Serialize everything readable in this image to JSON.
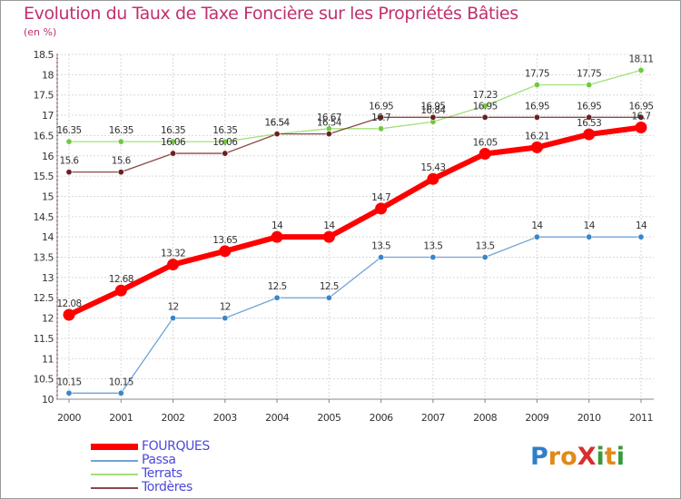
{
  "title": "Evolution du Taux de Taxe Foncière sur les Propriétés Bâties",
  "unit_label": "(en %)",
  "logo": {
    "text": "ProXiti",
    "letters": [
      {
        "ch": "P",
        "color": "#2f7fc9"
      },
      {
        "ch": "r",
        "color": "#e08a1a"
      },
      {
        "ch": "o",
        "color": "#e08a1a"
      },
      {
        "ch": "X",
        "color": "#d62f2f"
      },
      {
        "ch": "i",
        "color": "#3a9a3a"
      },
      {
        "ch": "t",
        "color": "#e08a1a"
      },
      {
        "ch": "i",
        "color": "#3a9a3a"
      }
    ]
  },
  "chart_data": {
    "type": "line",
    "title": "Evolution du Taux de Taxe Foncière sur les Propriétés Bâties",
    "xlabel": "",
    "ylabel": "(en %)",
    "x": [
      "2000",
      "2001",
      "2002",
      "2003",
      "2004",
      "2005",
      "2006",
      "2007",
      "2008",
      "2009",
      "2010",
      "2011"
    ],
    "ylim": [
      10,
      18.5
    ],
    "yticks": [
      "10",
      "10.5",
      "11",
      "11.5",
      "12",
      "12.5",
      "13",
      "13.5",
      "14",
      "14.5",
      "15",
      "15.5",
      "16",
      "16.5",
      "17",
      "17.5",
      "18",
      "18.5"
    ],
    "grid": true,
    "legend": "bottom-left",
    "series": [
      {
        "name": "Passa",
        "color": "#6fa3d6",
        "marker": "#3a86c8",
        "values": [
          10.15,
          10.15,
          12,
          12,
          12.5,
          12.5,
          13.5,
          13.5,
          13.5,
          14,
          14,
          14
        ],
        "labels": [
          "10.15",
          "10.15",
          "12",
          "12",
          "12.5",
          "12.5",
          "13.5",
          "13.5",
          "13.5",
          "14",
          "14",
          "14"
        ]
      },
      {
        "name": "Terrats",
        "color": "#a3e07a",
        "marker": "#72c842",
        "values": [
          16.35,
          16.35,
          16.35,
          16.35,
          16.54,
          16.67,
          16.67,
          16.84,
          17.23,
          17.75,
          17.75,
          18.11
        ],
        "labels": [
          "16.35",
          "16.35",
          "16.35",
          "16.35",
          "16.54",
          "16.67",
          "16.7",
          "16.84",
          "17.23",
          "17.75",
          "17.75",
          "18.11"
        ]
      },
      {
        "name": "Tordères",
        "color": "#8b4848",
        "marker": "#6b2020",
        "values": [
          15.6,
          15.6,
          16.06,
          16.06,
          16.54,
          16.54,
          16.95,
          16.95,
          16.95,
          16.95,
          16.95,
          16.95
        ],
        "labels": [
          "15.6",
          "15.6",
          "16.06",
          "16.06",
          "16.54",
          "16.54",
          "16.95",
          "16.95",
          "16.95",
          "16.95",
          "16.95",
          "16.95"
        ]
      },
      {
        "name": "FOURQUES",
        "color": "#ff0000",
        "marker": "#ff0000",
        "thick": true,
        "values": [
          12.08,
          12.68,
          13.32,
          13.65,
          14,
          14,
          14.7,
          15.43,
          16.05,
          16.21,
          16.53,
          16.7
        ],
        "labels": [
          "12.08",
          "12.68",
          "13.32",
          "13.65",
          "14",
          "14",
          "14.7",
          "15.43",
          "16.05",
          "16.21",
          "16.53",
          "16.7"
        ]
      }
    ],
    "legend_entries": [
      "FOURQUES",
      "Passa",
      "Terrats",
      "Tordères"
    ]
  }
}
